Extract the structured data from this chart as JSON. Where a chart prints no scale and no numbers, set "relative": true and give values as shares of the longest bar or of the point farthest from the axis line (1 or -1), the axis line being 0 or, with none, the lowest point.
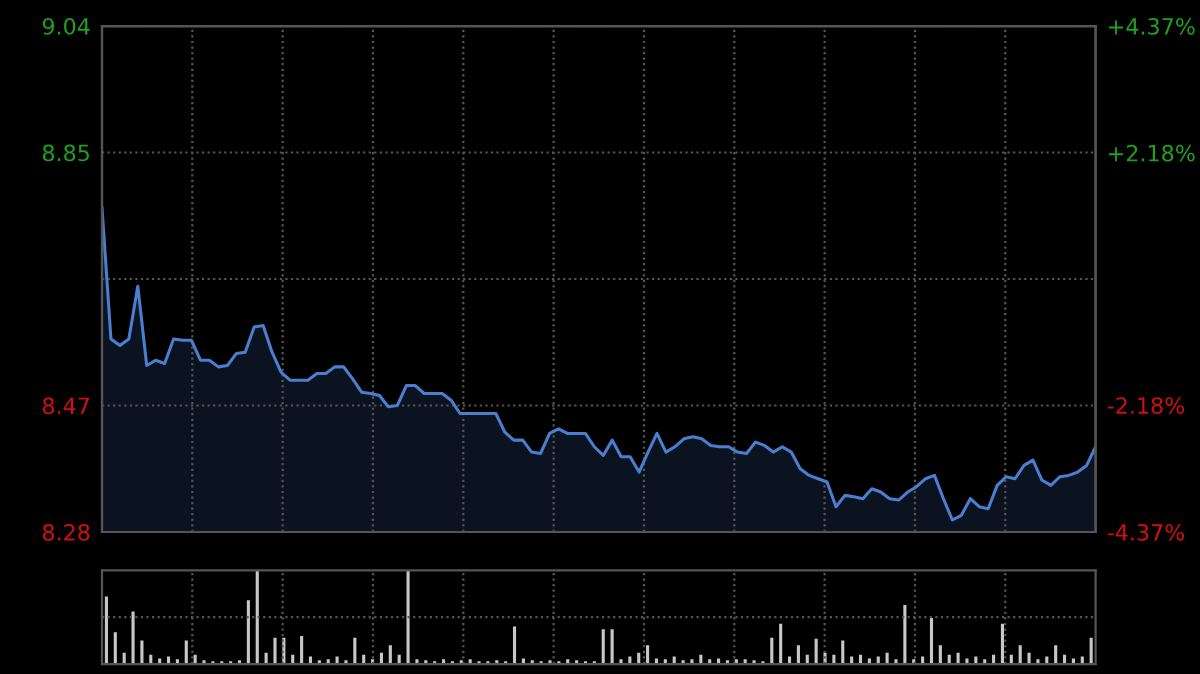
{
  "chart_data": [
    {
      "type": "area",
      "categories": [
        null,
        null,
        null,
        null,
        null,
        null,
        null,
        null,
        null,
        null,
        null,
        null,
        null,
        null,
        null,
        null,
        null,
        null,
        null,
        null,
        null,
        null,
        null,
        null,
        null,
        null,
        null,
        null,
        null,
        null,
        null,
        null,
        null,
        null,
        null,
        null,
        null,
        null,
        null,
        null,
        null,
        null,
        null,
        null,
        null,
        null,
        null,
        null,
        null,
        null,
        null,
        null,
        null,
        null,
        null,
        null,
        null,
        null,
        null,
        null,
        null,
        null,
        null,
        null,
        null,
        null,
        null,
        null,
        null,
        null,
        null,
        null,
        null,
        null,
        null,
        null,
        null,
        null,
        null,
        null,
        null,
        null,
        null,
        null,
        null,
        null,
        null,
        null,
        null,
        null,
        null,
        null,
        null,
        null,
        null,
        null,
        null,
        null,
        null,
        null,
        null,
        null,
        null,
        null,
        null,
        null,
        null,
        null,
        null,
        null,
        null,
        null
      ],
      "series": [
        {
          "color": "#4a7fd0",
          "values": [
            8.767,
            8.57,
            8.56,
            8.57,
            8.649,
            8.53,
            8.538,
            8.533,
            8.57,
            8.568,
            8.568,
            8.538,
            8.538,
            8.528,
            8.53,
            8.548,
            8.55,
            8.588,
            8.59,
            8.55,
            8.52,
            8.508,
            8.508,
            8.508,
            8.518,
            8.518,
            8.528,
            8.528,
            8.51,
            8.49,
            8.488,
            8.485,
            8.468,
            8.47,
            8.5,
            8.5,
            8.488,
            8.488,
            8.488,
            8.478,
            8.458,
            8.458,
            8.458,
            8.458,
            8.458,
            8.43,
            8.418,
            8.418,
            8.4,
            8.398,
            8.428,
            8.435,
            8.428,
            8.428,
            8.428,
            8.408,
            8.395,
            8.418,
            8.393,
            8.393,
            8.37,
            8.4,
            8.428,
            8.4,
            8.408,
            8.42,
            8.423,
            8.42,
            8.41,
            8.408,
            8.408,
            8.4,
            8.398,
            8.415,
            8.41,
            8.4,
            8.408,
            8.4,
            8.375,
            8.365,
            8.36,
            8.355,
            8.318,
            8.335,
            8.333,
            8.33,
            8.345,
            8.34,
            8.33,
            8.328,
            8.34,
            8.348,
            8.36,
            8.365,
            8.33,
            8.298,
            8.305,
            8.33,
            8.318,
            8.315,
            8.35,
            8.363,
            8.36,
            8.38,
            8.388,
            8.358,
            8.35,
            8.363,
            8.365,
            8.37,
            8.38,
            8.408
          ]
        }
      ],
      "ylim": [
        8.28,
        9.04
      ],
      "yticks": [
        8.28,
        8.47,
        {
          "value": 8.66,
          "label": null
        },
        8.85,
        9.04
      ],
      "y2lim": [
        -4.37,
        4.37
      ],
      "y2ticks": [
        {
          "value": -4.37,
          "label": "-4.37%"
        },
        {
          "value": -2.18,
          "label": "-2.18%"
        },
        {
          "value": 0,
          "label": null
        },
        {
          "value": 2.18,
          "label": "+2.18%"
        },
        {
          "value": 4.37,
          "label": "+4.37%"
        }
      ],
      "grid": true,
      "tick_labels": "y"
    },
    {
      "type": "bar",
      "relative": true,
      "categories": [
        null,
        null,
        null,
        null,
        null,
        null,
        null,
        null,
        null,
        null,
        null,
        null,
        null,
        null,
        null,
        null,
        null,
        null,
        null,
        null,
        null,
        null,
        null,
        null,
        null,
        null,
        null,
        null,
        null,
        null,
        null,
        null,
        null,
        null,
        null,
        null,
        null,
        null,
        null,
        null,
        null,
        null,
        null,
        null,
        null,
        null,
        null,
        null,
        null,
        null,
        null,
        null,
        null,
        null,
        null,
        null,
        null,
        null,
        null,
        null,
        null,
        null,
        null,
        null,
        null,
        null,
        null,
        null,
        null,
        null,
        null,
        null,
        null,
        null,
        null,
        null,
        null,
        null,
        null,
        null,
        null,
        null,
        null,
        null,
        null,
        null,
        null,
        null,
        null,
        null,
        null,
        null,
        null,
        null,
        null,
        null,
        null,
        null,
        null,
        null,
        null,
        null,
        null,
        null,
        null,
        null,
        null,
        null,
        null,
        null,
        null,
        null
      ],
      "series": [
        {
          "color": "#c8c8c8",
          "values": [
            0.72,
            0.34,
            0.12,
            0.56,
            0.25,
            0.1,
            0.06,
            0.08,
            0.05,
            0.25,
            0.1,
            0.04,
            0.03,
            0.03,
            0.03,
            0.04,
            0.68,
            1.0,
            0.12,
            0.28,
            0.28,
            0.1,
            0.3,
            0.08,
            0.04,
            0.05,
            0.08,
            0.04,
            0.28,
            0.1,
            0.05,
            0.12,
            0.2,
            0.1,
            1.0,
            0.05,
            0.04,
            0.03,
            0.05,
            0.03,
            0.04,
            0.05,
            0.03,
            0.03,
            0.04,
            0.03,
            0.4,
            0.06,
            0.04,
            0.03,
            0.04,
            0.03,
            0.05,
            0.04,
            0.03,
            0.03,
            0.37,
            0.37,
            0.05,
            0.08,
            0.12,
            0.2,
            0.06,
            0.05,
            0.08,
            0.04,
            0.05,
            0.1,
            0.05,
            0.06,
            0.04,
            0.05,
            0.05,
            0.04,
            0.03,
            0.28,
            0.43,
            0.08,
            0.2,
            0.1,
            0.27,
            0.12,
            0.1,
            0.25,
            0.08,
            0.1,
            0.06,
            0.08,
            0.12,
            0.05,
            0.63,
            0.05,
            0.08,
            0.49,
            0.2,
            0.1,
            0.12,
            0.06,
            0.08,
            0.05,
            0.1,
            0.43,
            0.1,
            0.2,
            0.12,
            0.05,
            0.08,
            0.2,
            0.1,
            0.06,
            0.08,
            0.28
          ]
        }
      ],
      "grid": true,
      "tick_labels": false
    }
  ]
}
